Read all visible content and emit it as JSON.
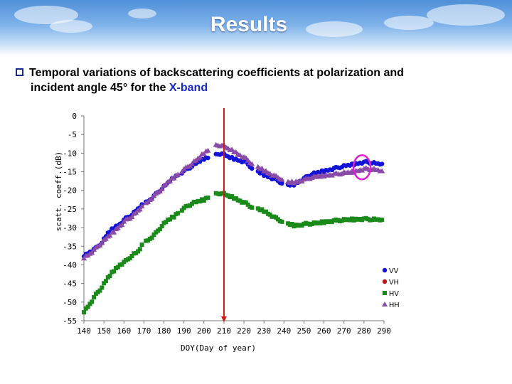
{
  "slide": {
    "title": "Results",
    "bullet_line1": "Temporal variations of backscattering coefficients at polarization and",
    "bullet_line2_prefix": "incident angle 45° for the ",
    "bullet_line2_band": "X-band"
  },
  "chart_data": {
    "type": "scatter",
    "title": "",
    "xlabel": "DOY(Day of year)",
    "ylabel": "scatt. coeff.(dB)",
    "xlim": [
      140,
      290
    ],
    "ylim": [
      -55,
      0
    ],
    "xticks": [
      "140",
      "150",
      "160",
      "170",
      "180",
      "190",
      "200",
      "210",
      "220",
      "230",
      "240",
      "250",
      "260",
      "270",
      "280",
      "290"
    ],
    "yticks": [
      "0",
      "-5",
      "-10",
      "-15",
      "-20",
      "-25",
      "-30",
      "-35",
      "-40",
      "-45",
      "-50",
      "-55"
    ],
    "vertical_marker_doy": 210,
    "highlight_circle_doy": 279,
    "series": [
      {
        "name": "VV",
        "color": "#1414d8",
        "marker": "circle",
        "x": [
          140,
          143,
          146,
          149,
          152,
          155,
          158,
          161,
          164,
          167,
          170,
          173,
          176,
          179,
          182,
          185,
          188,
          191,
          194,
          197,
          200,
          203,
          206,
          209,
          212,
          215,
          218,
          221,
          224,
          227,
          230,
          233,
          236,
          239,
          242,
          245,
          248,
          251,
          254,
          257,
          260,
          263,
          266,
          269,
          272,
          275,
          278,
          281,
          284,
          287,
          289
        ],
        "y": [
          -37.5,
          -36.5,
          -35.5,
          -34,
          -31.5,
          -30,
          -29,
          -27.5,
          -26.5,
          -25,
          -23.5,
          -22.5,
          -21,
          -19.5,
          -18,
          -16.5,
          -15.5,
          -14.5,
          -13.5,
          -12.5,
          -11.5,
          -11,
          -10.5,
          -10,
          -11,
          -11.5,
          -12,
          -12.5,
          -14,
          -15,
          -15.8,
          -16.5,
          -17.2,
          -18,
          -18.6,
          -18.4,
          -17.5,
          -16.5,
          -15.6,
          -15.2,
          -14.8,
          -14.4,
          -14,
          -13.6,
          -13.3,
          -13,
          -12.6,
          -12.4,
          -12.6,
          -12.9,
          -12.9
        ]
      },
      {
        "name": "VH",
        "color": "#c01818",
        "marker": "circle",
        "x": [],
        "y": []
      },
      {
        "name": "HV",
        "color": "#1a8a1a",
        "marker": "square",
        "x": [
          140,
          143,
          146,
          149,
          152,
          155,
          158,
          161,
          164,
          167,
          170,
          173,
          176,
          179,
          182,
          185,
          188,
          191,
          194,
          197,
          200,
          203,
          206,
          209,
          212,
          215,
          218,
          221,
          224,
          227,
          230,
          233,
          236,
          239,
          242,
          245,
          248,
          251,
          254,
          257,
          260,
          263,
          266,
          269,
          272,
          275,
          278,
          281,
          284,
          287,
          289
        ],
        "y": [
          -52.5,
          -50.5,
          -48,
          -46,
          -43.5,
          -41.5,
          -40,
          -39,
          -37.5,
          -36.5,
          -34,
          -33,
          -31.5,
          -29.5,
          -28,
          -27,
          -25.5,
          -24.5,
          -23.5,
          -23,
          -22.5,
          -21.5,
          -21,
          -20.7,
          -21.5,
          -22,
          -22.8,
          -23.5,
          -24.5,
          -25,
          -25.5,
          -26.5,
          -27.5,
          -28.3,
          -29,
          -29.4,
          -29.3,
          -29,
          -28.9,
          -28.8,
          -28.5,
          -28.3,
          -28.1,
          -28,
          -27.9,
          -27.8,
          -27.7,
          -27.7,
          -27.8,
          -27.9,
          -27.9
        ]
      },
      {
        "name": "HH",
        "color": "#8a4aa8",
        "marker": "triangle",
        "x": [
          140,
          143,
          146,
          149,
          152,
          155,
          158,
          161,
          164,
          167,
          170,
          173,
          176,
          179,
          182,
          185,
          188,
          191,
          194,
          197,
          200,
          203,
          206,
          209,
          212,
          215,
          218,
          221,
          224,
          227,
          230,
          233,
          236,
          239,
          242,
          245,
          248,
          251,
          254,
          257,
          260,
          263,
          266,
          269,
          272,
          275,
          278,
          281,
          284,
          287,
          289
        ],
        "y": [
          -38,
          -37,
          -35.5,
          -34,
          -32.5,
          -31,
          -29.5,
          -28,
          -27,
          -25.5,
          -24,
          -22.5,
          -21,
          -19.5,
          -17.8,
          -16.5,
          -15.2,
          -14,
          -12.8,
          -11.5,
          -10,
          -8.8,
          -8,
          -7.8,
          -8.8,
          -9.5,
          -10.5,
          -11.5,
          -12.8,
          -13.8,
          -14.6,
          -15.5,
          -16.3,
          -17,
          -17.8,
          -17.8,
          -17.5,
          -17,
          -16.5,
          -16.3,
          -16,
          -15.8,
          -15.6,
          -15.4,
          -15.2,
          -15,
          -14.5,
          -14.2,
          -14.3,
          -14.6,
          -14.8
        ]
      }
    ],
    "legend": {
      "position": "bottom-right",
      "entries": [
        "VV",
        "VH",
        "HV",
        "HH"
      ]
    }
  }
}
